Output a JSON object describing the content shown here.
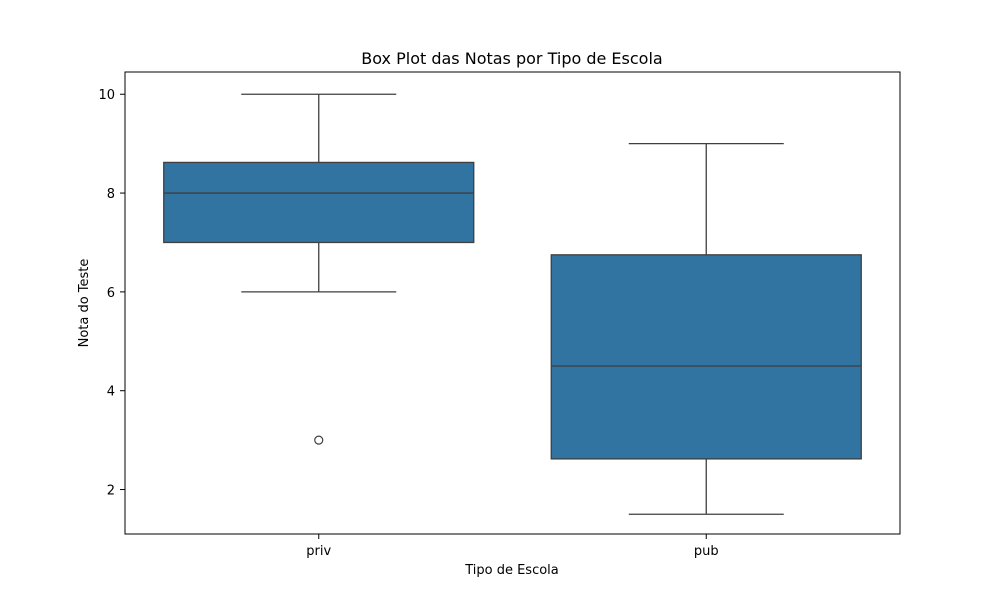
{
  "chart_data": {
    "type": "box",
    "title": "Box Plot das Notas por Tipo de Escola",
    "xlabel": "Tipo de Escola",
    "ylabel": "Nota do Teste",
    "categories": [
      "priv",
      "pub"
    ],
    "yticks": [
      2,
      4,
      6,
      8,
      10
    ],
    "ylim": [
      1.1,
      10.45
    ],
    "grid": false,
    "colors": {
      "box_fill": "#3274a1",
      "line": "#3f3f3f",
      "frame": "#000000"
    },
    "boxes": [
      {
        "category": "priv",
        "whisker_low": 6,
        "q1": 7,
        "median": 8,
        "q3": 8.62,
        "whisker_high": 10,
        "outliers": [
          3
        ]
      },
      {
        "category": "pub",
        "whisker_low": 1.5,
        "q1": 2.62,
        "median": 4.5,
        "q3": 6.75,
        "whisker_high": 9,
        "outliers": []
      }
    ]
  }
}
